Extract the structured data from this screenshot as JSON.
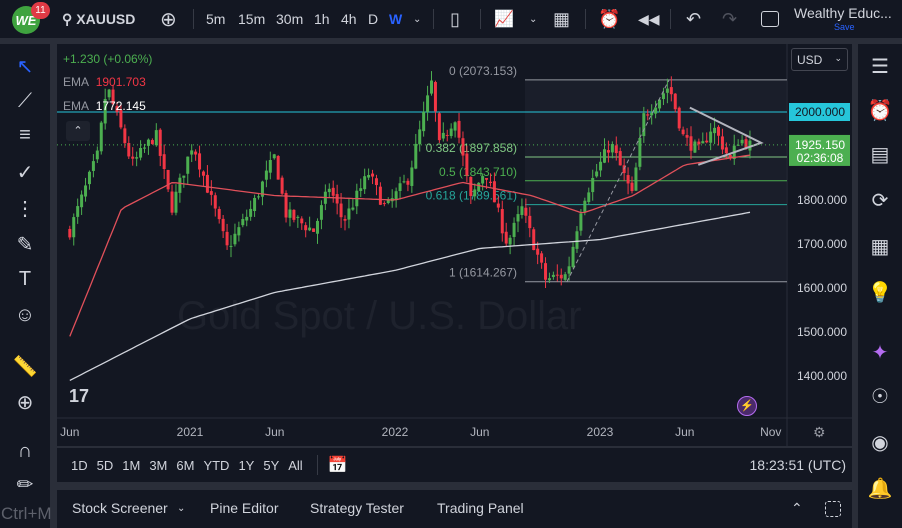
{
  "topbar": {
    "notifications": "11",
    "symbol": "XAUUSD",
    "intervals": [
      "5m",
      "15m",
      "30m",
      "1h",
      "4h",
      "D",
      "W"
    ],
    "active_interval": "W",
    "layout_name": "Wealthy Educ...",
    "save_label": "Save"
  },
  "legend": {
    "change": "+1.230 (+0.06%)",
    "ema1_label": "EMA",
    "ema1_value": "1901.703",
    "ema2_label": "EMA",
    "ema2_value": "1772.145"
  },
  "watermark": "Gold Spot / U.S. Dollar",
  "currency": "USD",
  "price_axis": {
    "labels": [
      "2000.000",
      "1800.000",
      "1700.000",
      "1600.000",
      "1500.000",
      "1400.000"
    ],
    "hline_label": "2000.000",
    "last_price": "1925.150",
    "countdown": "02:36:08"
  },
  "time_axis": {
    "labels": [
      {
        "t": "Jun",
        "d": "2020-06-01"
      },
      {
        "t": "2021",
        "d": "2021-01-01"
      },
      {
        "t": "Jun",
        "d": "2021-06-01"
      },
      {
        "t": "2022",
        "d": "2022-01-01"
      },
      {
        "t": "Jun",
        "d": "2022-06-01"
      },
      {
        "t": "2023",
        "d": "2023-01-01"
      },
      {
        "t": "Jun",
        "d": "2023-06-01"
      },
      {
        "t": "Nov",
        "d": "2023-11-01"
      }
    ]
  },
  "fib": {
    "levels": [
      {
        "label": "0 (2073.153)",
        "price": 2073.153
      },
      {
        "label": "0.382 (1897.858)",
        "price": 1897.858
      },
      {
        "label": "0.5 (1843.710)",
        "price": 1843.71
      },
      {
        "label": "0.618 (1789.561)",
        "price": 1789.561
      },
      {
        "label": "1 (1614.267)",
        "price": 1614.267
      }
    ]
  },
  "range_bar": {
    "ranges": [
      "1D",
      "5D",
      "1M",
      "3M",
      "6M",
      "YTD",
      "1Y",
      "5Y",
      "All"
    ],
    "clock": "18:23:51 (UTC)"
  },
  "bottom_panel": {
    "tabs": [
      "Stock Screener",
      "Pine Editor",
      "Strategy Tester",
      "Trading Panel"
    ]
  },
  "hint": "Ctrl+M",
  "colors": {
    "up": "#4caf50",
    "down": "#f23645",
    "ema_fast": "#e0505a",
    "ema_slow": "#d1d4dc",
    "hline": "#26c6da",
    "accent": "#2962ff"
  },
  "chart_data": {
    "type": "candlestick",
    "ylim": [
      1320,
      2170
    ],
    "price_path": [
      [
        "2020-06-01",
        1730
      ],
      [
        "2020-07-20",
        1900
      ],
      [
        "2020-08-06",
        2060
      ],
      [
        "2020-09-20",
        1880
      ],
      [
        "2020-11-01",
        1950
      ],
      [
        "2020-11-29",
        1780
      ],
      [
        "2021-01-06",
        1930
      ],
      [
        "2021-03-08",
        1690
      ],
      [
        "2021-04-20",
        1780
      ],
      [
        "2021-06-01",
        1900
      ],
      [
        "2021-06-20",
        1770
      ],
      [
        "2021-08-09",
        1730
      ],
      [
        "2021-09-06",
        1830
      ],
      [
        "2021-10-01",
        1750
      ],
      [
        "2021-11-15",
        1860
      ],
      [
        "2021-12-15",
        1780
      ],
      [
        "2022-01-25",
        1850
      ],
      [
        "2022-03-08",
        2070
      ],
      [
        "2022-03-20",
        1920
      ],
      [
        "2022-04-18",
        1990
      ],
      [
        "2022-05-16",
        1800
      ],
      [
        "2022-06-10",
        1870
      ],
      [
        "2022-07-20",
        1700
      ],
      [
        "2022-08-15",
        1780
      ],
      [
        "2022-09-26",
        1620
      ],
      [
        "2022-11-03",
        1630
      ],
      [
        "2022-12-01",
        1800
      ],
      [
        "2023-01-20",
        1930
      ],
      [
        "2023-02-27",
        1810
      ],
      [
        "2023-03-20",
        1990
      ],
      [
        "2023-05-04",
        2060
      ],
      [
        "2023-05-30",
        1940
      ],
      [
        "2023-06-28",
        1910
      ],
      [
        "2023-07-20",
        1970
      ],
      [
        "2023-08-21",
        1890
      ],
      [
        "2023-09-05",
        1940
      ],
      [
        "2023-09-25",
        1925
      ]
    ],
    "ema_fast": [
      [
        "2020-06-01",
        1490
      ],
      [
        "2020-09-01",
        1780
      ],
      [
        "2020-12-01",
        1840
      ],
      [
        "2021-06-01",
        1810
      ],
      [
        "2022-01-01",
        1800
      ],
      [
        "2022-05-01",
        1840
      ],
      [
        "2022-09-01",
        1810
      ],
      [
        "2022-12-01",
        1770
      ],
      [
        "2023-03-01",
        1810
      ],
      [
        "2023-06-01",
        1880
      ],
      [
        "2023-09-25",
        1902
      ]
    ],
    "ema_slow": [
      [
        "2020-06-01",
        1390
      ],
      [
        "2021-01-01",
        1530
      ],
      [
        "2021-06-01",
        1590
      ],
      [
        "2022-01-01",
        1640
      ],
      [
        "2022-06-01",
        1690
      ],
      [
        "2023-01-01",
        1710
      ],
      [
        "2023-06-01",
        1745
      ],
      [
        "2023-09-25",
        1772
      ]
    ],
    "hline": 2000,
    "last": 1925.15
  }
}
